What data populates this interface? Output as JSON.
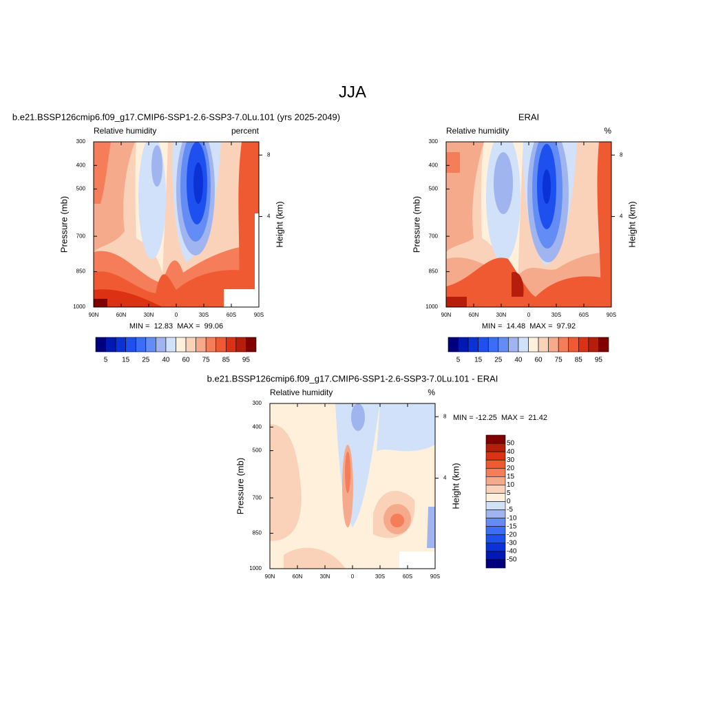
{
  "title": "JJA",
  "panels": [
    {
      "title": "b.e21.BSSP126cmip6.f09_g17.CMIP6-SSP1-2.6-SSP3-7.0Lu.101 (yrs 2025-2049)",
      "left_label": "Relative humidity",
      "right_label": "percent",
      "y_label": "Pressure (mb)",
      "y2_label": "Height (km)",
      "categories": [
        "90N",
        "60N",
        "30N",
        "0",
        "30S",
        "60S",
        "90S"
      ],
      "ylim": [
        300,
        1000
      ],
      "yticks": [
        300,
        400,
        500,
        700,
        850,
        1000
      ],
      "y2ticks": [
        8,
        4
      ],
      "stats": "MIN =  12.83  MAX =  99.06",
      "colorbar": {
        "orientation": "horizontal",
        "labels": [
          5,
          15,
          25,
          40,
          60,
          75,
          85,
          95
        ],
        "colors": [
          "#00007f",
          "#0019b3",
          "#0a32d6",
          "#1e50f0",
          "#3c6ef5",
          "#648cf5",
          "#a0b4f0",
          "#d2e1fa",
          "#fff0dc",
          "#fad2b9",
          "#f5aa8c",
          "#f57d5a",
          "#f05a32",
          "#dc3214",
          "#b41e0a",
          "#800000"
        ]
      }
    },
    {
      "title": "ERAI",
      "left_label": "Relative humidity",
      "right_label": "%",
      "y_label": "Pressure (mb)",
      "y2_label": "Height (km)",
      "categories": [
        "90N",
        "60N",
        "30N",
        "0",
        "30S",
        "60S",
        "90S"
      ],
      "ylim": [
        300,
        1000
      ],
      "yticks": [
        300,
        400,
        500,
        700,
        850,
        1000
      ],
      "y2ticks": [
        8,
        4
      ],
      "stats": "MIN =  14.48  MAX =  97.92",
      "colorbar": {
        "orientation": "horizontal",
        "labels": [
          5,
          15,
          25,
          40,
          60,
          75,
          85,
          95
        ],
        "colors": [
          "#00007f",
          "#0019b3",
          "#0a32d6",
          "#1e50f0",
          "#3c6ef5",
          "#648cf5",
          "#a0b4f0",
          "#d2e1fa",
          "#fff0dc",
          "#fad2b9",
          "#f5aa8c",
          "#f57d5a",
          "#f05a32",
          "#dc3214",
          "#b41e0a",
          "#800000"
        ]
      }
    },
    {
      "title": "b.e21.BSSP126cmip6.f09_g17.CMIP6-SSP1-2.6-SSP3-7.0Lu.101 - ERAI",
      "left_label": "Relative humidity",
      "right_label": "%",
      "y_label": "Pressure (mb)",
      "y2_label": "Height (km)",
      "categories": [
        "90N",
        "60N",
        "30N",
        "0",
        "30S",
        "60S",
        "90S"
      ],
      "ylim": [
        300,
        1000
      ],
      "yticks": [
        300,
        400,
        500,
        700,
        850,
        1000
      ],
      "y2ticks": [
        8,
        4
      ],
      "stats": "MIN = -12.25  MAX =  21.42",
      "colorbar": {
        "orientation": "vertical",
        "labels": [
          50,
          40,
          30,
          20,
          15,
          10,
          5,
          0,
          -5,
          -10,
          -15,
          -20,
          -30,
          -40,
          -50
        ],
        "colors": [
          "#800000",
          "#b41e0a",
          "#dc3214",
          "#f05a32",
          "#f57d5a",
          "#f5aa8c",
          "#fad2b9",
          "#fff0dc",
          "#d2e1fa",
          "#a0b4f0",
          "#648cf5",
          "#3c6ef5",
          "#1e50f0",
          "#0a32d6",
          "#0019b3",
          "#00007f"
        ]
      }
    }
  ]
}
